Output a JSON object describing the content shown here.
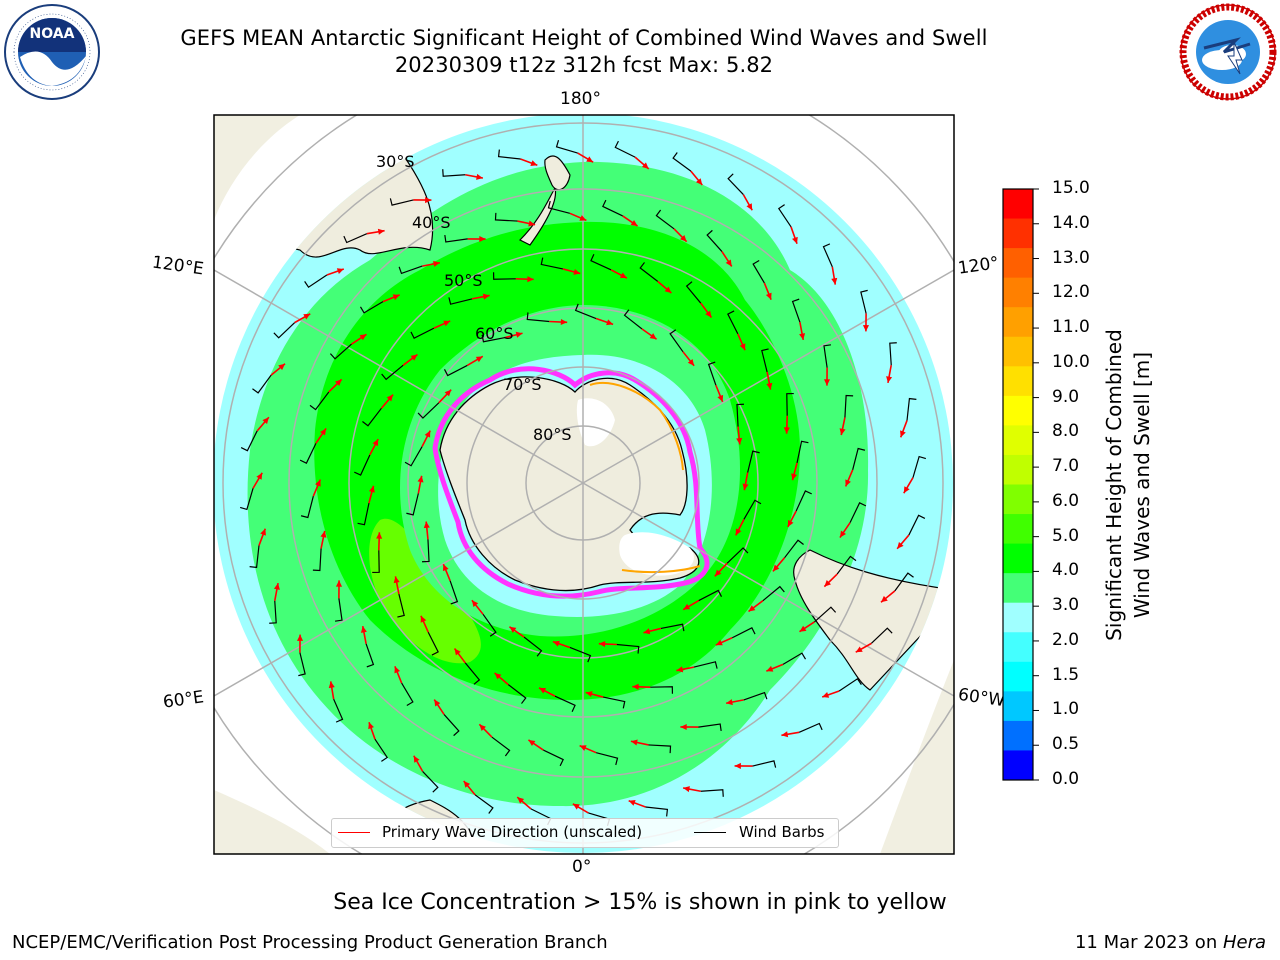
{
  "header": {
    "title_line1": "GEFS MEAN Antarctic Significant Height of Combined Wind Waves and Swell",
    "title_line2": "20230309 t12z 312h fcst   Max: 5.82"
  },
  "logos": {
    "left": "noaa-logo",
    "right": "national-weather-service-logo"
  },
  "map": {
    "projection": "south-polar-stereographic",
    "longitude_labels": {
      "top": "180°",
      "upper_left": "120°E",
      "upper_right": "120°",
      "lower_left": "60°E",
      "lower_right": "60°W",
      "bottom": "0°"
    },
    "latitude_labels": [
      "30°S",
      "40°S",
      "50°S",
      "60°S",
      "70°S",
      "80°S"
    ],
    "land_color": "#efedde",
    "ice_colors": [
      "#ff33ff",
      "#ffa500",
      "#ffff66"
    ]
  },
  "colorbar": {
    "label_line1": "Significant Height of Combined",
    "label_line2": "Wind Waves and Swell [m]",
    "ticks": [
      "15.0",
      "14.0",
      "13.0",
      "12.0",
      "11.0",
      "10.0",
      "9.0",
      "8.0",
      "7.0",
      "6.0",
      "5.0",
      "4.0",
      "3.0",
      "2.0",
      "1.5",
      "1.0",
      "0.5",
      "0.0"
    ],
    "colors_top_to_bottom": [
      "#ff0000",
      "#ff3000",
      "#ff6000",
      "#ff8000",
      "#ffa000",
      "#ffc000",
      "#ffe000",
      "#ffff00",
      "#e0ff00",
      "#c0ff00",
      "#80ff00",
      "#40ff00",
      "#00ff00",
      "#44ff77",
      "#a0ffff",
      "#44ffff",
      "#00ffff",
      "#00c8ff",
      "#0070ff",
      "#0000ff"
    ]
  },
  "legend": {
    "wave_label": "Primary Wave Direction (unscaled)",
    "wind_label": "Wind Barbs",
    "wave_color": "#ff0000",
    "wind_color": "#000000"
  },
  "notes": {
    "ice_note": "Sea Ice Concentration > 15% is shown in pink to yellow"
  },
  "footer": {
    "left": "NCEP/EMC/Verification Post Processing Product Generation Branch",
    "right_date": "11 Mar 2023 on ",
    "right_host": "Hera"
  }
}
